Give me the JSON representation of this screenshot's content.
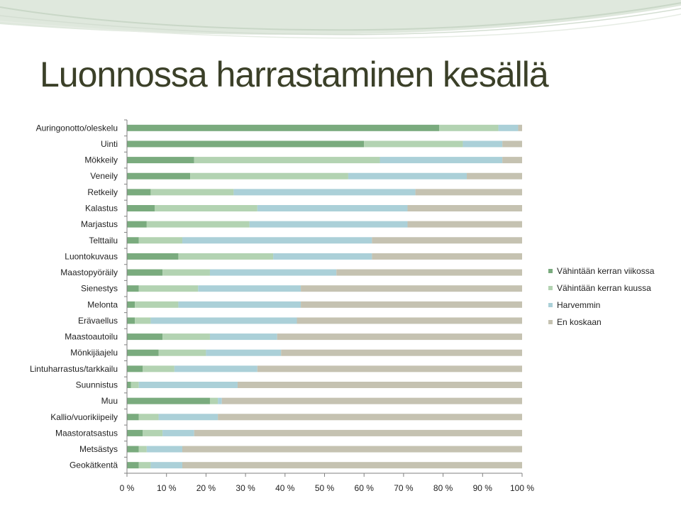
{
  "slide": {
    "title": "Luonnossa harrastaminen kesällä"
  },
  "colors": {
    "weekly": "#7aab7e",
    "monthly": "#b3d3b2",
    "rarely": "#abd0d8",
    "never": "#c5c2b1",
    "title": "#3b4028",
    "header_wave": "#c9d7c7"
  },
  "chart_data": {
    "type": "bar",
    "orientation": "horizontal",
    "stacked": "percent",
    "categories": [
      "Auringonotto/oleskelu",
      "Uinti",
      "Mökkeily",
      "Veneily",
      "Retkeily",
      "Kalastus",
      "Marjastus",
      "Telttailu",
      "Luontokuvaus",
      "Maastopyöräily",
      "Sienestys",
      "Melonta",
      "Erävaellus",
      "Maastoautoilu",
      "Mönkijäajelu",
      "Lintuharrastus/tarkkailu",
      "Suunnistus",
      "Muu",
      "Kallio/vuorikiipeily",
      "Maastoratsastus",
      "Metsästys",
      "Geokätkentä"
    ],
    "series": [
      {
        "name": "Vähintään kerran viikossa",
        "values": [
          79,
          60,
          17,
          16,
          6,
          7,
          5,
          3,
          13,
          9,
          3,
          2,
          2,
          9,
          8,
          4,
          1,
          21,
          3,
          4,
          3,
          3
        ]
      },
      {
        "name": "Vähintään kerran kuussa",
        "values": [
          15,
          25,
          47,
          40,
          21,
          26,
          26,
          11,
          24,
          12,
          15,
          11,
          4,
          12,
          12,
          8,
          2,
          2,
          5,
          5,
          2,
          3
        ]
      },
      {
        "name": "Harvemmin",
        "values": [
          5,
          10,
          31,
          30,
          46,
          38,
          40,
          48,
          25,
          32,
          26,
          31,
          37,
          17,
          19,
          21,
          25,
          1,
          15,
          8,
          9,
          8
        ]
      },
      {
        "name": "En koskaan",
        "values": [
          1,
          5,
          5,
          14,
          27,
          29,
          29,
          38,
          38,
          47,
          56,
          56,
          57,
          62,
          61,
          67,
          72,
          76,
          77,
          83,
          86,
          86
        ]
      }
    ],
    "xlim": [
      0,
      100
    ],
    "xticks": [
      "0 %",
      "10 %",
      "20 %",
      "30 %",
      "40 %",
      "50 %",
      "60 %",
      "70 %",
      "80 %",
      "90 %",
      "100 %"
    ],
    "legend_position": "right",
    "grid": false
  }
}
